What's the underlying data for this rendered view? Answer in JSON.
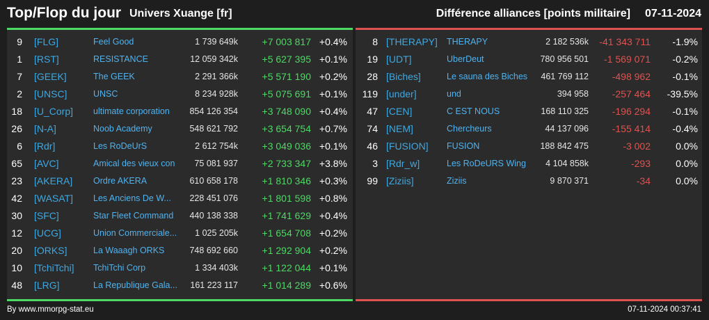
{
  "header": {
    "title": "Top/Flop du jour",
    "universe": "Univers Xuange [fr]",
    "metric": "Différence alliances [points militaire]",
    "date": "07-11-2024"
  },
  "colors": {
    "background": "#1e1e1e",
    "panel": "#2b2b2b",
    "positive": "#4cd964",
    "negative": "#e0524f",
    "link": "#3fa8e0"
  },
  "top": [
    {
      "rank": "9",
      "tag": "[FLG]",
      "name": "Feel Good",
      "points": "1 739 649k",
      "diff": "+7 003 817",
      "pct": "+0.4%"
    },
    {
      "rank": "1",
      "tag": "[RST]",
      "name": "RESISTANCE",
      "points": "12 059 342k",
      "diff": "+5 627 395",
      "pct": "+0.1%"
    },
    {
      "rank": "7",
      "tag": "[GEEK]",
      "name": "The GEEK",
      "points": "2 291 366k",
      "diff": "+5 571 190",
      "pct": "+0.2%"
    },
    {
      "rank": "2",
      "tag": "[UNSC]",
      "name": "UNSC",
      "points": "8 234 928k",
      "diff": "+5 075 691",
      "pct": "+0.1%"
    },
    {
      "rank": "18",
      "tag": "[U_Corp]",
      "name": "ultimate corporation",
      "points": "854 126 354",
      "diff": "+3 748 090",
      "pct": "+0.4%"
    },
    {
      "rank": "26",
      "tag": "[N-A]",
      "name": "Noob Academy",
      "points": "548 621 792",
      "diff": "+3 654 754",
      "pct": "+0.7%"
    },
    {
      "rank": "6",
      "tag": "[Rdr]",
      "name": "Les RoDeUrS",
      "points": "2 612 754k",
      "diff": "+3 049 036",
      "pct": "+0.1%"
    },
    {
      "rank": "65",
      "tag": "[AVC]",
      "name": "Amical des vieux con",
      "points": "75 081 937",
      "diff": "+2 733 347",
      "pct": "+3.8%"
    },
    {
      "rank": "23",
      "tag": "[AKERA]",
      "name": "Ordre AKERA",
      "points": "610 658 178",
      "diff": "+1 810 346",
      "pct": "+0.3%"
    },
    {
      "rank": "42",
      "tag": "[WASAT]",
      "name": "Les Anciens De W...",
      "points": "228 451 076",
      "diff": "+1 801 598",
      "pct": "+0.8%"
    },
    {
      "rank": "30",
      "tag": "[SFC]",
      "name": "Star Fleet Command",
      "points": "440 138 338",
      "diff": "+1 741 629",
      "pct": "+0.4%"
    },
    {
      "rank": "12",
      "tag": "[UCG]",
      "name": "Union Commerciale...",
      "points": "1 025 205k",
      "diff": "+1 654 708",
      "pct": "+0.2%"
    },
    {
      "rank": "20",
      "tag": "[ORKS]",
      "name": "La Waaagh ORKS",
      "points": "748 692 660",
      "diff": "+1 292 904",
      "pct": "+0.2%"
    },
    {
      "rank": "10",
      "tag": "[TchiTchi]",
      "name": "TchiTchi Corp",
      "points": "1 334 403k",
      "diff": "+1 122 044",
      "pct": "+0.1%"
    },
    {
      "rank": "48",
      "tag": "[LRG]",
      "name": "La Republique Gala...",
      "points": "161 223 117",
      "diff": "+1 014 289",
      "pct": "+0.6%"
    }
  ],
  "flop": [
    {
      "rank": "8",
      "tag": "[THERAPY]",
      "name": "THERAPY",
      "points": "2 182 536k",
      "diff": "-41 343 711",
      "pct": "-1.9%"
    },
    {
      "rank": "19",
      "tag": "[UDT]",
      "name": "UberDeut",
      "points": "780 956 501",
      "diff": "-1 569 071",
      "pct": "-0.2%"
    },
    {
      "rank": "28",
      "tag": "[Biches]",
      "name": "Le sauna des Biches",
      "points": "461 769 112",
      "diff": "-498 962",
      "pct": "-0.1%"
    },
    {
      "rank": "119",
      "tag": "[under]",
      "name": "und",
      "points": "394 958",
      "diff": "-257 464",
      "pct": "-39.5%"
    },
    {
      "rank": "47",
      "tag": "[CEN]",
      "name": "C EST NOUS",
      "points": "168 110 325",
      "diff": "-196 294",
      "pct": "-0.1%"
    },
    {
      "rank": "74",
      "tag": "[NEM]",
      "name": "Chercheurs",
      "points": "44 137 096",
      "diff": "-155 414",
      "pct": "-0.4%"
    },
    {
      "rank": "46",
      "tag": "[FUSION]",
      "name": "FUSION",
      "points": "188 842 475",
      "diff": "-3 002",
      "pct": "0.0%"
    },
    {
      "rank": "3",
      "tag": "[Rdr_w]",
      "name": "Les RoDeURS Wing",
      "points": "4 104 858k",
      "diff": "-293",
      "pct": "0.0%"
    },
    {
      "rank": "99",
      "tag": "[Ziziis]",
      "name": "Ziziis",
      "points": "9 870 371",
      "diff": "-34",
      "pct": "0.0%"
    }
  ],
  "footer": {
    "source": "By www.mmorpg-stat.eu",
    "timestamp": "07-11-2024 00:37:41"
  }
}
